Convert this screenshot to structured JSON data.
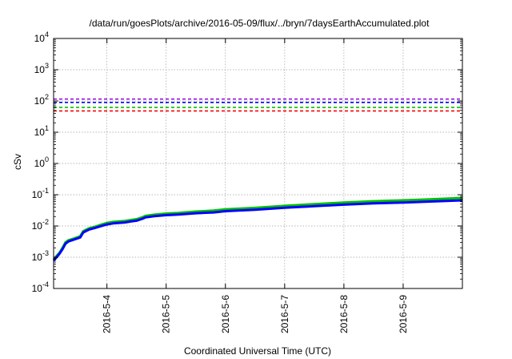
{
  "chart_data": {
    "type": "line",
    "title": "/data/run/goesPlots/archive/2016-05-09/flux/../bryn/7daysEarthAccumulated.plot",
    "xlabel": "Coordinated Universal Time (UTC)",
    "ylabel": "cSv",
    "yscale": "log",
    "ylim": [
      0.0001,
      10000
    ],
    "xlim": [
      3.1,
      10.0
    ],
    "grid": true,
    "y_ticks": [
      {
        "value": 0.0001,
        "base": "10",
        "exp": "-4"
      },
      {
        "value": 0.001,
        "base": "10",
        "exp": "-3"
      },
      {
        "value": 0.01,
        "base": "10",
        "exp": "-2"
      },
      {
        "value": 0.1,
        "base": "10",
        "exp": "-1"
      },
      {
        "value": 1,
        "base": "10",
        "exp": "0"
      },
      {
        "value": 10,
        "base": "10",
        "exp": "1"
      },
      {
        "value": 100,
        "base": "10",
        "exp": "2"
      },
      {
        "value": 1000,
        "base": "10",
        "exp": "3"
      },
      {
        "value": 10000,
        "base": "10",
        "exp": "4"
      }
    ],
    "x_ticks": [
      {
        "value": 4,
        "label": "2016-5-4"
      },
      {
        "value": 5,
        "label": "2016-5-5"
      },
      {
        "value": 6,
        "label": "2016-5-6"
      },
      {
        "value": 7,
        "label": "2016-5-7"
      },
      {
        "value": 8,
        "label": "2016-5-8"
      },
      {
        "value": 9,
        "label": "2016-5-9"
      }
    ],
    "thresholds": [
      {
        "value": 115,
        "color": "#9400d3"
      },
      {
        "value": 90,
        "color": "#0000ff"
      },
      {
        "value": 62,
        "color": "#00c000"
      },
      {
        "value": 48,
        "color": "#ff0000"
      }
    ],
    "series": [
      {
        "color": "#00c000",
        "x": [
          3.1,
          3.15,
          3.2,
          3.25,
          3.3,
          3.35,
          3.45,
          3.55,
          3.6,
          3.7,
          3.8,
          3.9,
          4.0,
          4.1,
          4.3,
          4.4,
          4.5,
          4.6,
          4.65,
          4.8,
          5.0,
          5.2,
          5.5,
          5.8,
          6.0,
          6.5,
          7.0,
          7.5,
          8.0,
          8.5,
          9.0,
          9.5,
          10.0
        ],
        "values": [
          0.00085,
          0.0011,
          0.0014,
          0.002,
          0.003,
          0.0035,
          0.004,
          0.0047,
          0.0068,
          0.0085,
          0.0095,
          0.011,
          0.0125,
          0.0135,
          0.0145,
          0.0155,
          0.0165,
          0.019,
          0.021,
          0.023,
          0.025,
          0.026,
          0.029,
          0.031,
          0.034,
          0.038,
          0.044,
          0.05,
          0.056,
          0.062,
          0.066,
          0.072,
          0.079
        ]
      },
      {
        "color": "#0000ff",
        "x": [
          3.1,
          3.15,
          3.2,
          3.25,
          3.3,
          3.35,
          3.45,
          3.55,
          3.6,
          3.7,
          3.8,
          3.9,
          4.0,
          4.1,
          4.3,
          4.4,
          4.5,
          4.6,
          4.65,
          4.8,
          5.0,
          5.2,
          5.5,
          5.8,
          6.0,
          6.5,
          7.0,
          7.5,
          8.0,
          8.5,
          9.0,
          9.5,
          10.0
        ],
        "values": [
          0.00078,
          0.001,
          0.0013,
          0.0018,
          0.0027,
          0.0032,
          0.0037,
          0.0043,
          0.0062,
          0.0077,
          0.0087,
          0.0099,
          0.0112,
          0.0121,
          0.013,
          0.0139,
          0.0148,
          0.017,
          0.0188,
          0.0205,
          0.0222,
          0.0232,
          0.0256,
          0.0272,
          0.0298,
          0.0331,
          0.0381,
          0.0431,
          0.0481,
          0.053,
          0.0562,
          0.0608,
          0.066
        ]
      }
    ]
  }
}
